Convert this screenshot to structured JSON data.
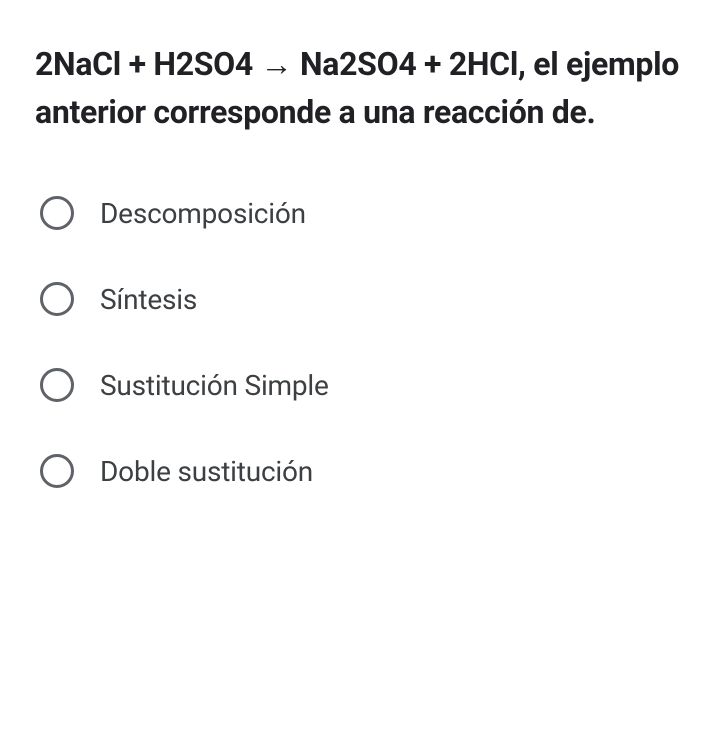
{
  "question": {
    "text": " 2NaCl + H2SO4 → Na2SO4 + 2HCl, el ejemplo anterior corresponde a una reacción de.",
    "text_color": "#202124",
    "font_size": 32,
    "font_weight": 700
  },
  "options": [
    {
      "label": "Descomposición",
      "selected": false
    },
    {
      "label": "Síntesis",
      "selected": false
    },
    {
      "label": "Sustitución Simple",
      "selected": false
    },
    {
      "label": "Doble sustitución",
      "selected": false
    }
  ],
  "styling": {
    "background_color": "#ffffff",
    "option_text_color": "#3c4043",
    "option_font_size": 28,
    "radio_border_color": "#5f6368",
    "radio_size": 34,
    "radio_border_width": 3,
    "option_gap": 52
  }
}
